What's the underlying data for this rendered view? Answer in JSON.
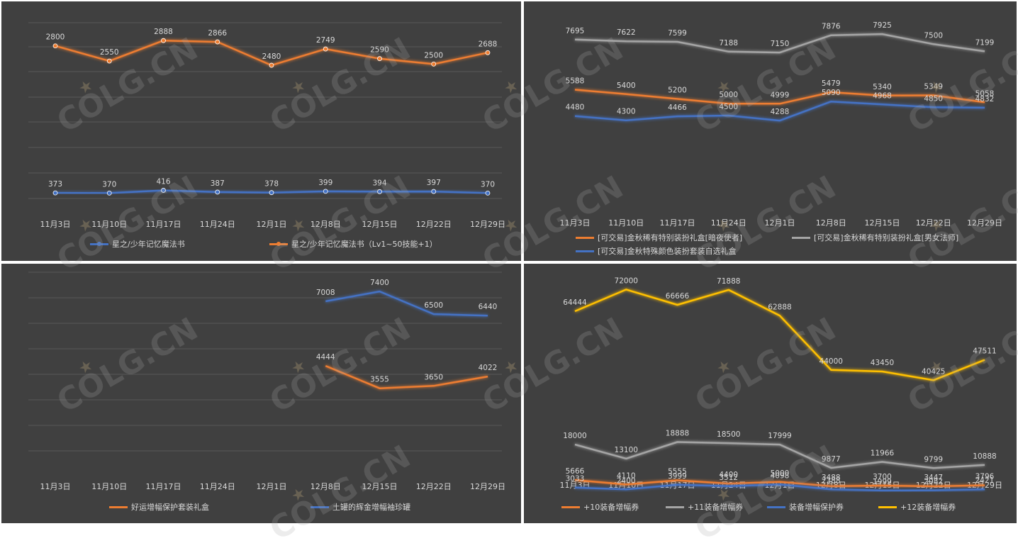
{
  "watermark": "COLG.CN",
  "chart_data": [
    {
      "type": "line",
      "categories": [
        "11月3日",
        "11月10日",
        "11月17日",
        "11月24日",
        "12月1日",
        "12月8日",
        "12月15日",
        "12月22日",
        "12月29日"
      ],
      "ylim": [
        0,
        3300
      ],
      "grid": true,
      "legend_position": "bottom",
      "markers": true,
      "series": [
        {
          "name": "星之/少年记忆魔法书",
          "color": "#4472c4",
          "values": [
            373,
            370,
            416,
            387,
            378,
            399,
            394,
            397,
            370
          ]
        },
        {
          "name": "星之/少年记忆魔法书（Lv1~50技能+1）",
          "color": "#ed7d31",
          "values": [
            2800,
            2550,
            2888,
            2866,
            2480,
            2749,
            2590,
            2500,
            2688
          ]
        }
      ]
    },
    {
      "type": "line",
      "categories": [
        "11月3日",
        "11月10日",
        "11月17日",
        "11月24日",
        "12月1日",
        "12月8日",
        "12月15日",
        "12月22日",
        "12月29日"
      ],
      "ylim": [
        0,
        9000
      ],
      "grid": false,
      "legend_position": "bottom",
      "series": [
        {
          "name": "[可交易]金秋稀有特别装扮礼盒[暗夜使者]",
          "color": "#ed7d31",
          "values": [
            5588,
            5400,
            5200,
            5000,
            4999,
            5479,
            5340,
            5349,
            5058
          ]
        },
        {
          "name": "[可交易]金秋稀有特别装扮礼盒[男女法师]",
          "color": "#a5a5a5",
          "values": [
            7695,
            7622,
            7599,
            7188,
            7150,
            7876,
            7925,
            7500,
            7199
          ]
        },
        {
          "name": "[可交易]金秋特殊颜色装扮套装自选礼盒",
          "color": "#4472c4",
          "values": [
            4480,
            4300,
            4466,
            4500,
            4288,
            5090,
            4968,
            4850,
            4832
          ]
        }
      ]
    },
    {
      "type": "line",
      "categories": [
        "11月3日",
        "11月10日",
        "11月17日",
        "11月24日",
        "12月1日",
        "12月8日",
        "12月15日",
        "12月22日",
        "12月29日"
      ],
      "ylim": [
        0,
        8500
      ],
      "grid": true,
      "legend_position": "bottom",
      "series": [
        {
          "name": "好运增幅保护套装礼盒",
          "color": "#ed7d31",
          "values": [
            null,
            null,
            null,
            null,
            null,
            4444,
            3555,
            3650,
            4022
          ]
        },
        {
          "name": "土罐的辉金增幅袖珍罐",
          "color": "#4472c4",
          "values": [
            null,
            null,
            null,
            null,
            null,
            7008,
            7400,
            6500,
            6440
          ]
        }
      ]
    },
    {
      "type": "line",
      "categories": [
        "11月3日",
        "11月10日",
        "11月17日",
        "11月24日",
        "12月1日",
        "12月8日",
        "12月15日",
        "12月22日",
        "12月29日"
      ],
      "ylim": [
        0,
        80000
      ],
      "grid": false,
      "legend_position": "bottom",
      "series": [
        {
          "name": "+10装备增幅券",
          "color": "#ed7d31",
          "values": [
            5666,
            4110,
            5555,
            4400,
            5000,
            3488,
            3700,
            3447,
            3796
          ]
        },
        {
          "name": "+11装备增幅券",
          "color": "#a5a5a5",
          "values": [
            18000,
            13100,
            18888,
            18500,
            17999,
            9877,
            11966,
            9799,
            10888
          ]
        },
        {
          "name": "装备增幅保护券",
          "color": "#4472c4",
          "values": [
            3033,
            2400,
            3999,
            3512,
            4098,
            2388,
            1999,
            2082,
            2421
          ]
        },
        {
          "name": "+12装备增幅券",
          "color": "#ffc000",
          "values": [
            64444,
            72000,
            66666,
            71888,
            62888,
            44000,
            43450,
            40425,
            47511
          ]
        }
      ]
    }
  ]
}
